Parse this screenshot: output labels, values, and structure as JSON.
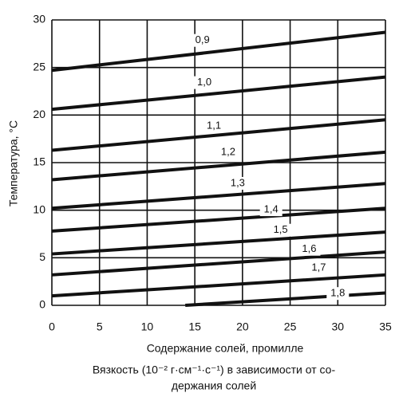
{
  "chart_data": {
    "type": "line",
    "xlabel": "Содержание солей, промилле",
    "ylabel": "Температура, °С",
    "caption": [
      "Вязкость (10⁻² г·см⁻¹·с⁻¹) в зависимости от со-",
      "держания солей"
    ],
    "xlim": [
      0,
      35
    ],
    "xticks": [
      0,
      5,
      10,
      15,
      20,
      25,
      30,
      35
    ],
    "ylim": [
      0,
      30
    ],
    "yticks": [
      0,
      5,
      10,
      15,
      20,
      25,
      30
    ],
    "grid": true,
    "color": "#111111",
    "series": [
      {
        "name": "0,9",
        "x": [
          0,
          35
        ],
        "values": [
          24.7,
          28.7
        ]
      },
      {
        "name": "1,0",
        "x": [
          0,
          35
        ],
        "values": [
          20.6,
          24.0
        ]
      },
      {
        "name": "1,1",
        "x": [
          0,
          35
        ],
        "values": [
          16.3,
          19.5
        ]
      },
      {
        "name": "1,2",
        "x": [
          0,
          35
        ],
        "values": [
          13.2,
          16.1
        ]
      },
      {
        "name": "1,3",
        "x": [
          0,
          35
        ],
        "values": [
          10.2,
          12.8
        ]
      },
      {
        "name": "1,4",
        "x": [
          0,
          35
        ],
        "values": [
          7.8,
          10.2
        ]
      },
      {
        "name": "1,5",
        "x": [
          0,
          35
        ],
        "values": [
          5.4,
          7.7
        ]
      },
      {
        "name": "1,6",
        "x": [
          0,
          35
        ],
        "values": [
          3.2,
          5.6
        ]
      },
      {
        "name": "1,7",
        "x": [
          0,
          35
        ],
        "values": [
          1.0,
          3.2
        ]
      },
      {
        "name": "1,8",
        "x": [
          14,
          35
        ],
        "values": [
          0,
          1.3
        ]
      }
    ]
  }
}
